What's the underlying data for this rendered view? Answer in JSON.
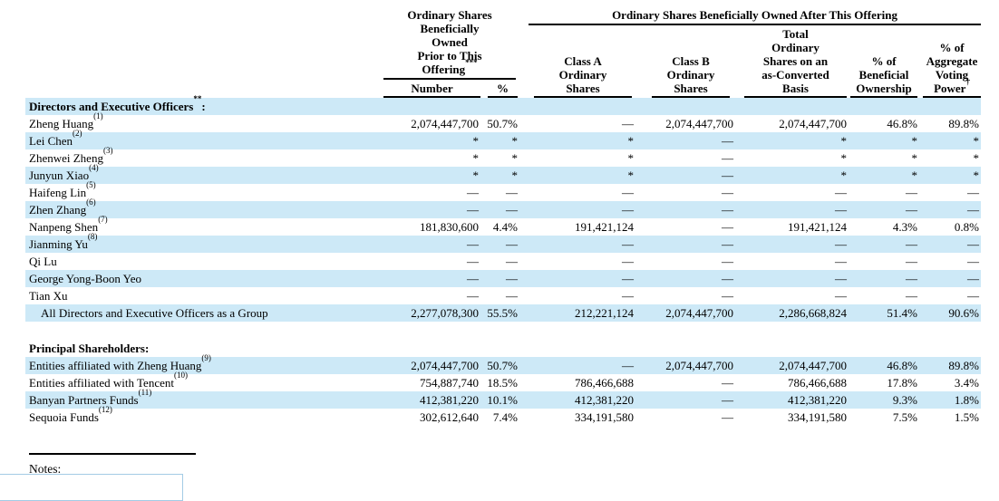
{
  "page": {
    "stripe_color": "#cde9f7",
    "highlight_border_color": "#a3cbe5"
  },
  "table": {
    "header": {
      "prior_group": {
        "title_lines": [
          "Ordinary Shares",
          "Beneficially",
          "Owned",
          "Prior to This",
          "Offering"
        ],
        "title_sup": "***",
        "columns": [
          {
            "label": "Number"
          },
          {
            "label": "%"
          }
        ]
      },
      "after_group": {
        "title": "Ordinary Shares Beneficially Owned After This Offering",
        "columns": [
          {
            "lines": [
              "Class A",
              "Ordinary",
              "Shares"
            ]
          },
          {
            "lines": [
              "Class B",
              "Ordinary",
              "Shares"
            ]
          },
          {
            "lines": [
              "Total",
              "Ordinary",
              "Shares on an",
              "as-Converted",
              "Basis"
            ]
          },
          {
            "lines": [
              "% of",
              "Beneficial",
              "Ownership"
            ]
          },
          {
            "lines": [
              "% of",
              "Aggregate",
              "Voting",
              "Power"
            ],
            "sup": "†"
          }
        ]
      }
    },
    "rows": [
      {
        "type": "section",
        "label": "Directors and Executive Officers",
        "sup": "**",
        "suffix": ":",
        "shaded": true
      },
      {
        "type": "data",
        "name": "Zheng Huang",
        "ref": "(1)",
        "shaded": false,
        "values": [
          "2,074,447,700",
          "50.7%",
          "—",
          "2,074,447,700",
          "2,074,447,700",
          "46.8%",
          "89.8%"
        ]
      },
      {
        "type": "data",
        "name": "Lei Chen",
        "ref": "(2)",
        "shaded": true,
        "values": [
          "*",
          "*",
          "*",
          "—",
          "*",
          "*",
          "*"
        ]
      },
      {
        "type": "data",
        "name": "Zhenwei Zheng",
        "ref": "(3)",
        "shaded": false,
        "values": [
          "*",
          "*",
          "*",
          "—",
          "*",
          "*",
          "*"
        ]
      },
      {
        "type": "data",
        "name": "Junyun Xiao",
        "ref": "(4)",
        "shaded": true,
        "values": [
          "*",
          "*",
          "*",
          "—",
          "*",
          "*",
          "*"
        ]
      },
      {
        "type": "data",
        "name": "Haifeng Lin",
        "ref": "(5)",
        "shaded": false,
        "values": [
          "—",
          "—",
          "—",
          "—",
          "—",
          "—",
          "—"
        ]
      },
      {
        "type": "data",
        "name": "Zhen Zhang",
        "ref": "(6)",
        "shaded": true,
        "values": [
          "—",
          "—",
          "—",
          "—",
          "—",
          "—",
          "—"
        ]
      },
      {
        "type": "data",
        "name": "Nanpeng Shen",
        "ref": "(7)",
        "shaded": false,
        "values": [
          "181,830,600",
          "4.4%",
          "191,421,124",
          "—",
          "191,421,124",
          "4.3%",
          "0.8%"
        ]
      },
      {
        "type": "data",
        "name": "Jianming Yu",
        "ref": "(8)",
        "shaded": true,
        "values": [
          "—",
          "—",
          "—",
          "—",
          "—",
          "—",
          "—"
        ]
      },
      {
        "type": "data",
        "name": "Qi Lu",
        "ref": "",
        "shaded": false,
        "values": [
          "—",
          "—",
          "—",
          "—",
          "—",
          "—",
          "—"
        ]
      },
      {
        "type": "data",
        "name": "George Yong-Boon Yeo",
        "ref": "",
        "shaded": true,
        "values": [
          "—",
          "—",
          "—",
          "—",
          "—",
          "—",
          "—"
        ]
      },
      {
        "type": "data",
        "name": "Tian Xu",
        "ref": "",
        "shaded": false,
        "values": [
          "—",
          "—",
          "—",
          "—",
          "—",
          "—",
          "—"
        ]
      },
      {
        "type": "data",
        "name": "All Directors and Executive Officers as a Group",
        "ref": "",
        "indent": true,
        "shaded": true,
        "values": [
          "2,277,078,300",
          "55.5%",
          "212,221,124",
          "2,074,447,700",
          "2,286,668,824",
          "51.4%",
          "90.6%"
        ]
      },
      {
        "type": "spacer"
      },
      {
        "type": "section",
        "label": "Principal Shareholders",
        "sup": "",
        "suffix": ":",
        "shaded": false
      },
      {
        "type": "data",
        "name": "Entities affiliated with Zheng Huang",
        "ref": "(9)",
        "shaded": true,
        "values": [
          "2,074,447,700",
          "50.7%",
          "—",
          "2,074,447,700",
          "2,074,447,700",
          "46.8%",
          "89.8%"
        ]
      },
      {
        "type": "data",
        "name": "Entities affiliated with Tencent",
        "ref": "(10)",
        "shaded": false,
        "values": [
          "754,887,740",
          "18.5%",
          "786,466,688",
          "—",
          "786,466,688",
          "17.8%",
          "3.4%"
        ]
      },
      {
        "type": "data",
        "name": "Banyan Partners Funds",
        "ref": "(11)",
        "shaded": true,
        "values": [
          "412,381,220",
          "10.1%",
          "412,381,220",
          "—",
          "412,381,220",
          "9.3%",
          "1.8%"
        ]
      },
      {
        "type": "data",
        "name": "Sequoia Funds",
        "ref": "(12)",
        "shaded": false,
        "values": [
          "302,612,640",
          "7.4%",
          "334,191,580",
          "—",
          "334,191,580",
          "7.5%",
          "1.5%"
        ]
      }
    ]
  },
  "footer": {
    "notes_label": "Notes:"
  }
}
